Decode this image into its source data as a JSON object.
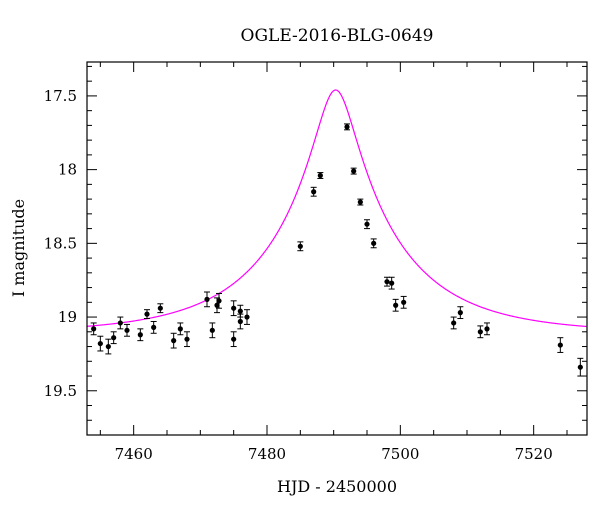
{
  "chart_data": {
    "type": "scatter",
    "title": "OGLE-2016-BLG-0649",
    "xlabel": "HJD - 2450000",
    "ylabel": "I magnitude",
    "xlim": [
      7453,
      7528
    ],
    "ylim": [
      19.8,
      17.27
    ],
    "y_inverted": true,
    "xticks": [
      7460,
      7480,
      7500,
      7520
    ],
    "xtick_labels": [
      "7460",
      "7480",
      "7500",
      "7520"
    ],
    "yticks": [
      17.5,
      18,
      18.5,
      19,
      19.5
    ],
    "ytick_labels": [
      "17.5",
      "18",
      "18.5",
      "19",
      "19.5"
    ],
    "grid": false,
    "colors": {
      "points": "#000000",
      "model": "#ff00ff",
      "frame": "#000000"
    },
    "series": [
      {
        "kind": "points",
        "points": [
          {
            "x": 7454.0,
            "y": 19.08,
            "err": 0.04
          },
          {
            "x": 7455.0,
            "y": 19.18,
            "err": 0.05
          },
          {
            "x": 7456.2,
            "y": 19.2,
            "err": 0.05
          },
          {
            "x": 7457.0,
            "y": 19.14,
            "err": 0.04
          },
          {
            "x": 7458.0,
            "y": 19.04,
            "err": 0.04
          },
          {
            "x": 7459.0,
            "y": 19.09,
            "err": 0.04
          },
          {
            "x": 7461.0,
            "y": 19.12,
            "err": 0.04
          },
          {
            "x": 7462.0,
            "y": 18.98,
            "err": 0.03
          },
          {
            "x": 7463.0,
            "y": 19.07,
            "err": 0.04
          },
          {
            "x": 7464.0,
            "y": 18.94,
            "err": 0.03
          },
          {
            "x": 7466.0,
            "y": 19.16,
            "err": 0.05
          },
          {
            "x": 7467.0,
            "y": 19.08,
            "err": 0.04
          },
          {
            "x": 7468.0,
            "y": 19.15,
            "err": 0.05
          },
          {
            "x": 7471.0,
            "y": 18.88,
            "err": 0.05
          },
          {
            "x": 7471.8,
            "y": 19.09,
            "err": 0.05
          },
          {
            "x": 7472.5,
            "y": 18.92,
            "err": 0.05
          },
          {
            "x": 7472.8,
            "y": 18.89,
            "err": 0.05
          },
          {
            "x": 7475.0,
            "y": 18.94,
            "err": 0.05
          },
          {
            "x": 7475.0,
            "y": 19.15,
            "err": 0.05
          },
          {
            "x": 7476.0,
            "y": 18.96,
            "err": 0.04
          },
          {
            "x": 7476.0,
            "y": 19.03,
            "err": 0.05
          },
          {
            "x": 7477.0,
            "y": 19.0,
            "err": 0.05
          },
          {
            "x": 7485.0,
            "y": 18.52,
            "err": 0.03
          },
          {
            "x": 7487.0,
            "y": 18.15,
            "err": 0.03
          },
          {
            "x": 7488.0,
            "y": 18.04,
            "err": 0.02
          },
          {
            "x": 7492.0,
            "y": 17.71,
            "err": 0.02
          },
          {
            "x": 7493.0,
            "y": 18.01,
            "err": 0.02
          },
          {
            "x": 7494.0,
            "y": 18.22,
            "err": 0.02
          },
          {
            "x": 7495.0,
            "y": 18.37,
            "err": 0.03
          },
          {
            "x": 7496.0,
            "y": 18.5,
            "err": 0.03
          },
          {
            "x": 7498.0,
            "y": 18.76,
            "err": 0.03
          },
          {
            "x": 7498.7,
            "y": 18.77,
            "err": 0.04
          },
          {
            "x": 7499.3,
            "y": 18.92,
            "err": 0.04
          },
          {
            "x": 7500.5,
            "y": 18.9,
            "err": 0.04
          },
          {
            "x": 7508.0,
            "y": 19.04,
            "err": 0.04
          },
          {
            "x": 7509.0,
            "y": 18.97,
            "err": 0.04
          },
          {
            "x": 7512.0,
            "y": 19.1,
            "err": 0.04
          },
          {
            "x": 7513.0,
            "y": 19.08,
            "err": 0.04
          },
          {
            "x": 7524.0,
            "y": 19.19,
            "err": 0.05
          },
          {
            "x": 7527.0,
            "y": 19.34,
            "err": 0.06
          }
        ]
      },
      {
        "kind": "line",
        "model": {
          "t0": 7490.3,
          "u0": 0.16,
          "tE": 18.0,
          "baseline": 19.11,
          "peak": 17.46
        }
      }
    ]
  }
}
